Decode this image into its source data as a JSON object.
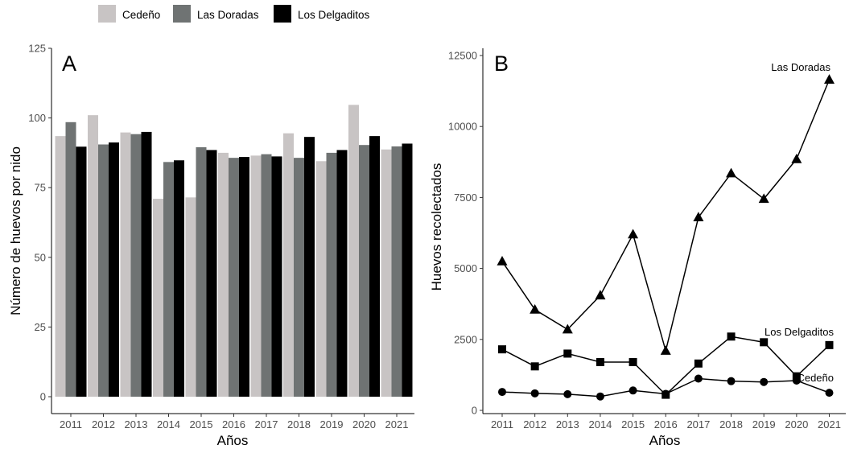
{
  "legend": {
    "items": [
      {
        "label": "Cedeño",
        "color": "#c8c4c4"
      },
      {
        "label": "Las Doradas",
        "color": "#6f7373"
      },
      {
        "label": "Los Delgaditos",
        "color": "#000000"
      }
    ]
  },
  "chart_data": [
    {
      "type": "bar",
      "panel_label": "A",
      "xlabel": "Años",
      "ylabel": "Número de huevos por nido",
      "ylim": [
        0,
        125
      ],
      "yticks": [
        0,
        25,
        50,
        75,
        100,
        125
      ],
      "grid": false,
      "categories": [
        "2011",
        "2012",
        "2013",
        "2014",
        "2015",
        "2016",
        "2017",
        "2018",
        "2019",
        "2020",
        "2021"
      ],
      "series": [
        {
          "name": "Cedeño",
          "color": "#c8c4c4",
          "values": [
            93.5,
            101,
            94.8,
            71,
            71.5,
            87.5,
            86.5,
            94.5,
            84.5,
            104.7,
            88.7
          ]
        },
        {
          "name": "Las Doradas",
          "color": "#6f7373",
          "values": [
            98.5,
            90.5,
            94.2,
            84.2,
            89.5,
            85.7,
            87,
            85.7,
            87.5,
            90.3,
            89.8
          ]
        },
        {
          "name": "Los Delgaditos",
          "color": "#000000",
          "values": [
            89.7,
            91.2,
            95,
            84.8,
            88.5,
            86,
            86.2,
            93.2,
            88.5,
            93.5,
            90.8
          ]
        }
      ]
    },
    {
      "type": "line",
      "panel_label": "B",
      "xlabel": "Años",
      "ylabel": "Huevos recolectados",
      "ylim": [
        0,
        12500
      ],
      "yticks": [
        0,
        2500,
        5000,
        7500,
        10000,
        12500
      ],
      "grid": false,
      "x": [
        "2011",
        "2012",
        "2013",
        "2014",
        "2015",
        "2016",
        "2017",
        "2018",
        "2019",
        "2020",
        "2021"
      ],
      "series": [
        {
          "name": "Las Doradas",
          "marker": "triangle",
          "values": [
            5250,
            3550,
            2850,
            4050,
            6200,
            2100,
            6800,
            8350,
            7450,
            8850,
            11650
          ]
        },
        {
          "name": "Los Delgaditos",
          "marker": "square",
          "values": [
            2150,
            1550,
            2000,
            1700,
            1700,
            550,
            1650,
            2600,
            2400,
            1200,
            2300
          ]
        },
        {
          "name": "Cedeño",
          "marker": "circle",
          "values": [
            650,
            600,
            570,
            490,
            700,
            580,
            1120,
            1030,
            1000,
            1050,
            620
          ]
        }
      ]
    }
  ]
}
